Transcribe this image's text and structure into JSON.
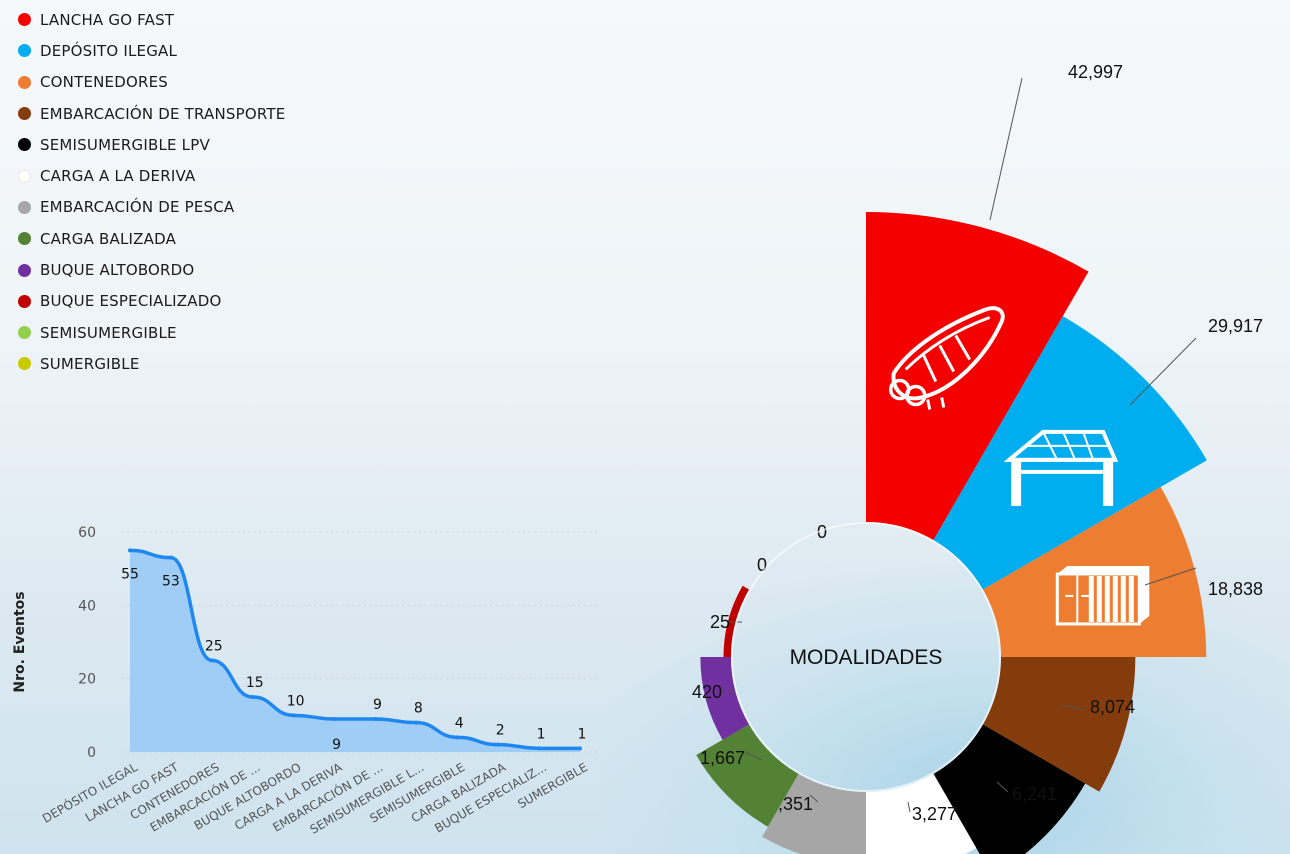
{
  "legend": {
    "items": [
      {
        "label": "LANCHA GO FAST",
        "color": "#f40000"
      },
      {
        "label": "DEPÓSITO ILEGAL",
        "color": "#00adef"
      },
      {
        "label": "CONTENEDORES",
        "color": "#ed7d31"
      },
      {
        "label": "EMBARCACIÓN DE TRANSPORTE",
        "color": "#843c0c"
      },
      {
        "label": "SEMISUMERGIBLE LPV",
        "color": "#000000"
      },
      {
        "label": "CARGA A LA DERIVA",
        "color": "#ffffff"
      },
      {
        "label": "EMBARCACIÓN DE PESCA",
        "color": "#a6a6a6"
      },
      {
        "label": "CARGA BALIZADA",
        "color": "#548235"
      },
      {
        "label": "BUQUE ALTOBORDO",
        "color": "#7030a0"
      },
      {
        "label": "BUQUE ESPECIALIZADO",
        "color": "#c00000"
      },
      {
        "label": "SEMISUMERGIBLE",
        "color": "#92d050"
      },
      {
        "label": "SUMERGIBLE",
        "color": "#c9c900"
      }
    ]
  },
  "chart_data": [
    {
      "type": "area",
      "ylabel": "Nro. Eventos",
      "ylim": [
        0,
        60
      ],
      "yticks": [
        0,
        20,
        40,
        60
      ],
      "grid": true,
      "categories": [
        "DEPÓSITO ILEGAL",
        "LANCHA GO FAST",
        "CONTENEDORES",
        "EMBARCACIÓN DE ...",
        "BUQUE ALTOBORDO",
        "CARGA A LA DERIVA",
        "EMBARCACIÓN DE ...",
        "SEMISUMERGIBLE L...",
        "SEMISUMERGIBLE",
        "CARGA BALIZADA",
        "BUQUE ESPECIALIZ...",
        "SUMERGIBLE"
      ],
      "values": [
        55,
        53,
        25,
        15,
        10,
        9,
        9,
        8,
        4,
        2,
        1,
        1
      ],
      "line_color": "#1e88f0",
      "fill_color": "#9ccbf5"
    },
    {
      "type": "pie",
      "subtype": "rose",
      "center_label": "MODALIDADES",
      "slices": [
        {
          "name": "LANCHA GO FAST",
          "value": 42997,
          "label": "42,997",
          "color": "#f40000"
        },
        {
          "name": "DEPÓSITO ILEGAL",
          "value": 29917,
          "label": "29,917",
          "color": "#00adef"
        },
        {
          "name": "CONTENEDORES",
          "value": 18838,
          "label": "18,838",
          "color": "#ed7d31"
        },
        {
          "name": "EMBARCACIÓN DE TRANSPORTE",
          "value": 8074,
          "label": "8,074",
          "color": "#843c0c"
        },
        {
          "name": "SEMISUMERGIBLE LPV",
          "value": 6241,
          "label": "6,241",
          "color": "#000000"
        },
        {
          "name": "CARGA A LA DERIVA",
          "value": 3277,
          "label": "3,277",
          "color": "#ffffff"
        },
        {
          "name": "EMBARCACIÓN DE PESCA",
          "value": 2351,
          "label": "2,351",
          "color": "#a6a6a6"
        },
        {
          "name": "CARGA BALIZADA",
          "value": 1667,
          "label": "1,667",
          "color": "#548235"
        },
        {
          "name": "BUQUE ALTOBORDO",
          "value": 420,
          "label": "420",
          "color": "#7030a0"
        },
        {
          "name": "BUQUE ESPECIALIZADO",
          "value": 25,
          "label": "25",
          "color": "#c00000"
        },
        {
          "name": "SEMISUMERGIBLE",
          "value": 0,
          "label": "0",
          "color": "#92d050"
        },
        {
          "name": "SUMERGIBLE",
          "value": 0,
          "label": "0",
          "color": "#c9c900"
        }
      ]
    }
  ]
}
